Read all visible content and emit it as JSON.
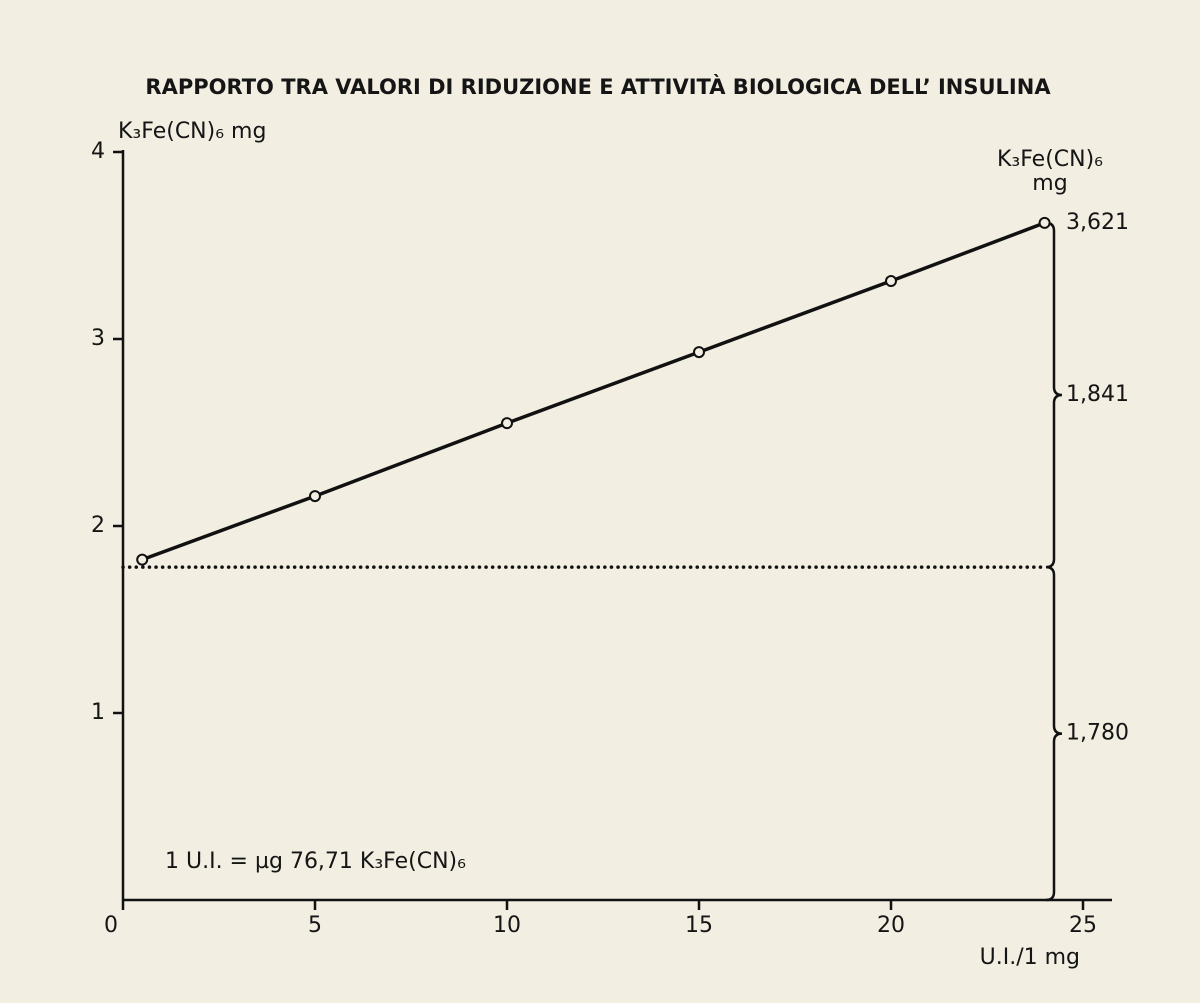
{
  "chart_data": {
    "type": "line",
    "title": "RAPPORTO TRA VALORI DI RIDUZIONE E ATTIVITÀ BIOLOGICA DELL’ INSULINA",
    "y_label": "K₃Fe(CN)₆ mg",
    "x_label": "U.I./1 mg",
    "right_label": [
      "K₃Fe(CN)₆",
      "mg"
    ],
    "annotation": "1 U.I. = µg 76,71  K₃Fe(CN)₆",
    "x": [
      0.5,
      5,
      10,
      15,
      20,
      24
    ],
    "series": [
      {
        "name": "K₃Fe(CN)₆",
        "color": "#111111",
        "values": [
          1.82,
          2.16,
          2.55,
          2.93,
          3.31,
          3.621
        ]
      }
    ],
    "reference": {
      "value": 1.78,
      "label": "1,780"
    },
    "difference": {
      "value": 1.841,
      "label": "1,841"
    },
    "end_value": {
      "value": 3.621,
      "label": "3,621"
    },
    "xlim": [
      0,
      25
    ],
    "xticks": [
      0,
      5,
      10,
      15,
      20,
      25
    ],
    "ylim": [
      0,
      4
    ],
    "yticks": [
      1,
      2,
      3,
      4
    ]
  }
}
